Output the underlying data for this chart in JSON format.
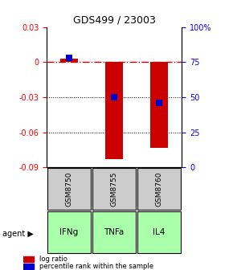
{
  "title": "GDS499 / 23003",
  "samples": [
    "GSM8750",
    "GSM8755",
    "GSM8760"
  ],
  "agents": [
    "IFNg",
    "TNFa",
    "IL4"
  ],
  "log_ratios": [
    0.003,
    -0.083,
    -0.073
  ],
  "percentile_ranks": [
    78,
    50,
    46
  ],
  "ylim_left": [
    -0.09,
    0.03
  ],
  "ylim_right": [
    0,
    100
  ],
  "left_ticks": [
    0.03,
    0,
    -0.03,
    -0.06,
    -0.09
  ],
  "right_ticks": [
    100,
    75,
    50,
    25,
    0
  ],
  "right_labels": [
    "100%",
    "75",
    "50",
    "25",
    "0"
  ],
  "bar_color": "#cc0000",
  "percentile_color": "#0000cc",
  "zero_line_color": "#cc0000",
  "grid_color": "#000000",
  "agent_fill": "#aaffaa",
  "sample_bg_color": "#cccccc",
  "bar_width": 0.4,
  "percentile_bar_width": 0.15,
  "percentile_bar_height": 0.005
}
